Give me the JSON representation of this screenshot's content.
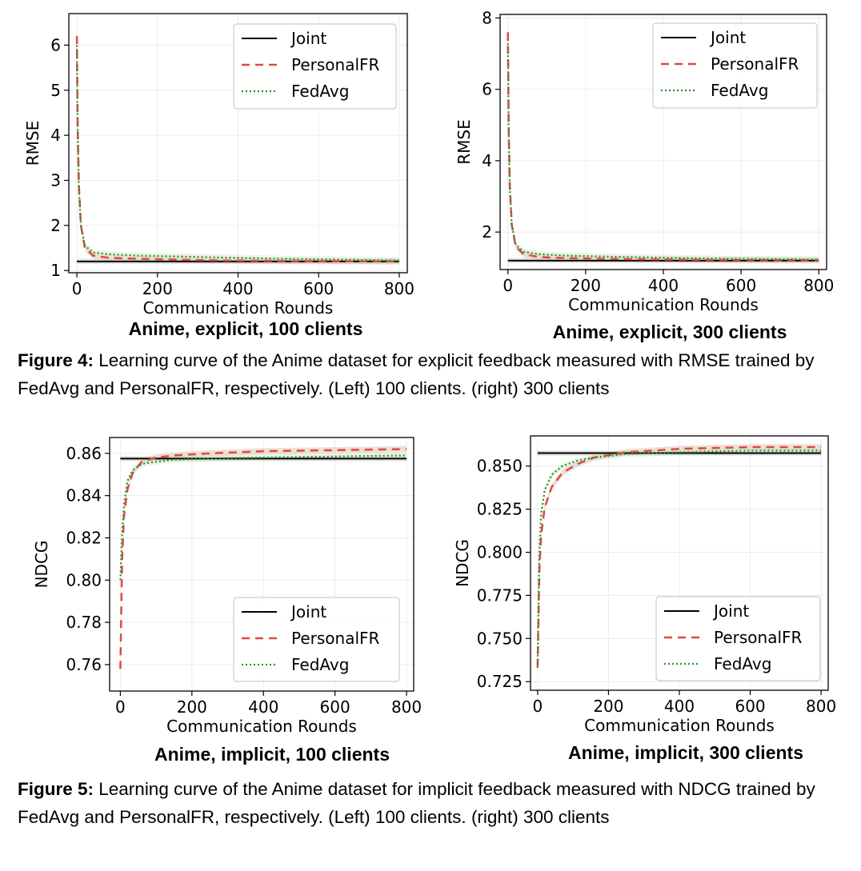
{
  "palette": {
    "joint": "#000000",
    "personal": "#e04a3a",
    "fedavg": "#2f8f2f",
    "personal_band": "#d9b8a8",
    "fedavg_band": "#cfe8c7",
    "joint_band": "#bbbbbb"
  },
  "chart_data": [
    {
      "type": "line",
      "caption": "Anime, explicit, 100 clients",
      "xlabel": "Communication Rounds",
      "ylabel": "RMSE",
      "xlim": [
        -20,
        820
      ],
      "ylim": [
        0.95,
        6.7
      ],
      "xticks": [
        0,
        200,
        400,
        600,
        800
      ],
      "yticks": [
        1,
        2,
        3,
        4,
        5,
        6
      ],
      "ytick_labels": [
        "1",
        "2",
        "3",
        "4",
        "5",
        "6"
      ],
      "grid": true,
      "legend": "upper-right",
      "series": [
        {
          "name": "Joint",
          "style": "solid",
          "x": [
            0,
            800
          ],
          "y": [
            1.2,
            1.2
          ]
        },
        {
          "name": "PersonalFR",
          "style": "dashed",
          "x": [
            0,
            2,
            5,
            10,
            20,
            40,
            80,
            150,
            300,
            500,
            800
          ],
          "y": [
            6.2,
            4.2,
            2.9,
            2.0,
            1.5,
            1.33,
            1.28,
            1.26,
            1.23,
            1.21,
            1.2
          ]
        },
        {
          "name": "FedAvg",
          "style": "dotted",
          "x": [
            0,
            2,
            5,
            10,
            20,
            40,
            80,
            150,
            300,
            500,
            800
          ],
          "y": [
            6.0,
            4.1,
            2.8,
            2.0,
            1.55,
            1.4,
            1.36,
            1.33,
            1.3,
            1.26,
            1.22
          ]
        }
      ]
    },
    {
      "type": "line",
      "caption": "Anime, explicit, 300 clients",
      "xlabel": "Communication Rounds",
      "ylabel": "RMSE",
      "xlim": [
        -20,
        820
      ],
      "ylim": [
        0.95,
        8.1
      ],
      "xticks": [
        0,
        200,
        400,
        600,
        800
      ],
      "yticks": [
        2,
        4,
        6,
        8
      ],
      "ytick_labels": [
        "2",
        "4",
        "6",
        "8"
      ],
      "grid": true,
      "legend": "upper-right",
      "series": [
        {
          "name": "Joint",
          "style": "solid",
          "x": [
            0,
            800
          ],
          "y": [
            1.2,
            1.2
          ]
        },
        {
          "name": "PersonalFR",
          "style": "dashed",
          "x": [
            0,
            2,
            5,
            10,
            20,
            40,
            80,
            150,
            300,
            500,
            800
          ],
          "y": [
            7.6,
            5.0,
            3.3,
            2.2,
            1.6,
            1.38,
            1.3,
            1.27,
            1.24,
            1.22,
            1.21
          ]
        },
        {
          "name": "FedAvg",
          "style": "dotted",
          "x": [
            0,
            2,
            5,
            10,
            20,
            40,
            80,
            150,
            300,
            500,
            800
          ],
          "y": [
            7.4,
            4.9,
            3.2,
            2.2,
            1.65,
            1.45,
            1.38,
            1.34,
            1.3,
            1.26,
            1.23
          ]
        }
      ]
    },
    {
      "type": "line",
      "caption": "Anime, implicit, 100 clients",
      "xlabel": "Communication Rounds",
      "ylabel": "NDCG",
      "xlim": [
        -30,
        820
      ],
      "ylim": [
        0.7475,
        0.8675
      ],
      "xticks": [
        0,
        200,
        400,
        600,
        800
      ],
      "yticks": [
        0.76,
        0.78,
        0.8,
        0.82,
        0.84,
        0.86
      ],
      "ytick_labels": [
        "0.76",
        "0.78",
        "0.80",
        "0.82",
        "0.84",
        "0.86"
      ],
      "grid": true,
      "legend": "lower-right",
      "series": [
        {
          "name": "Joint",
          "style": "solid",
          "x": [
            0,
            800
          ],
          "y": [
            0.8575,
            0.8575
          ]
        },
        {
          "name": "PersonalFR",
          "style": "dashed",
          "x": [
            0,
            5,
            10,
            20,
            35,
            60,
            100,
            150,
            250,
            400,
            600,
            800
          ],
          "y": [
            0.758,
            0.81,
            0.83,
            0.843,
            0.851,
            0.856,
            0.858,
            0.859,
            0.86,
            0.861,
            0.8615,
            0.862
          ]
        },
        {
          "name": "FedAvg",
          "style": "dotted",
          "x": [
            0,
            5,
            10,
            20,
            35,
            60,
            100,
            150,
            250,
            400,
            600,
            800
          ],
          "y": [
            0.8,
            0.822,
            0.836,
            0.847,
            0.852,
            0.855,
            0.856,
            0.857,
            0.8575,
            0.858,
            0.8585,
            0.859
          ]
        }
      ]
    },
    {
      "type": "line",
      "caption": "Anime, implicit, 300 clients",
      "xlabel": "Communication Rounds",
      "ylabel": "NDCG",
      "xlim": [
        -20,
        820
      ],
      "ylim": [
        0.72,
        0.8675
      ],
      "xticks": [
        0,
        200,
        400,
        600,
        800
      ],
      "yticks": [
        0.725,
        0.75,
        0.775,
        0.8,
        0.825,
        0.85
      ],
      "ytick_labels": [
        "0.725",
        "0.750",
        "0.775",
        "0.800",
        "0.825",
        "0.850"
      ],
      "grid": true,
      "legend": "lower-right",
      "series": [
        {
          "name": "Joint",
          "style": "solid",
          "x": [
            0,
            800
          ],
          "y": [
            0.8575,
            0.8575
          ]
        },
        {
          "name": "PersonalFR",
          "style": "dashed",
          "x": [
            0,
            5,
            10,
            20,
            40,
            70,
            110,
            160,
            250,
            400,
            600,
            800
          ],
          "y": [
            0.733,
            0.79,
            0.81,
            0.826,
            0.838,
            0.846,
            0.851,
            0.855,
            0.858,
            0.86,
            0.861,
            0.861
          ]
        },
        {
          "name": "FedAvg",
          "style": "dotted",
          "x": [
            0,
            5,
            10,
            20,
            40,
            70,
            110,
            160,
            250,
            400,
            600,
            800
          ],
          "y": [
            0.735,
            0.8,
            0.822,
            0.836,
            0.845,
            0.85,
            0.853,
            0.855,
            0.857,
            0.858,
            0.859,
            0.859
          ]
        }
      ]
    }
  ],
  "figures": [
    {
      "label": "Figure 4:",
      "text": " Learning curve of the Anime dataset for explicit feedback measured with RMSE trained by FedAvg and PersonalFR, respectively. (Left) 100 clients. (right) 300 clients"
    },
    {
      "label": "Figure 5:",
      "text": " Learning curve of the Anime dataset for implicit feedback measured with NDCG trained by FedAvg and PersonalFR, respectively. (Left) 100 clients. (right) 300 clients"
    }
  ]
}
